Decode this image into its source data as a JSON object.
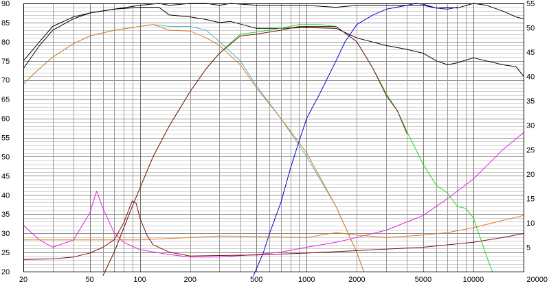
{
  "chart_data": {
    "type": "line",
    "xscale": "log",
    "xlim": [
      20,
      20000
    ],
    "ylim_left": [
      20,
      90
    ],
    "ylim_right": [
      0,
      55
    ],
    "x_ticks": [
      {
        "v": 20,
        "label": "20"
      },
      {
        "v": 50,
        "label": "50"
      },
      {
        "v": 100,
        "label": "100"
      },
      {
        "v": 200,
        "label": "200"
      },
      {
        "v": 500,
        "label": "500"
      },
      {
        "v": 1000,
        "label": "1000"
      },
      {
        "v": 2000,
        "label": "2000"
      },
      {
        "v": 5000,
        "label": "5000"
      },
      {
        "v": 10000,
        "label": "10000"
      },
      {
        "v": 20000,
        "label": "20000"
      }
    ],
    "y_left_ticks": [
      {
        "v": 20,
        "label": "20"
      },
      {
        "v": 25,
        "label": "25"
      },
      {
        "v": 30,
        "label": "30"
      },
      {
        "v": 35,
        "label": "35"
      },
      {
        "v": 40,
        "label": "40"
      },
      {
        "v": 45,
        "label": "45"
      },
      {
        "v": 50,
        "label": "50"
      },
      {
        "v": 55,
        "label": "55"
      },
      {
        "v": 60,
        "label": "60"
      },
      {
        "v": 65,
        "label": "65"
      },
      {
        "v": 70,
        "label": "70"
      },
      {
        "v": 75,
        "label": "75"
      },
      {
        "v": 80,
        "label": "80"
      },
      {
        "v": 85,
        "label": "85"
      },
      {
        "v": 90,
        "label": "90"
      }
    ],
    "y_right_ticks": [
      {
        "v": 5,
        "label": "5"
      },
      {
        "v": 10,
        "label": "10"
      },
      {
        "v": 15,
        "label": "15"
      },
      {
        "v": 20,
        "label": "20"
      },
      {
        "v": 25,
        "label": "25"
      },
      {
        "v": 30,
        "label": "30"
      },
      {
        "v": 35,
        "label": "35"
      },
      {
        "v": 40,
        "label": "40"
      },
      {
        "v": 45,
        "label": "45"
      },
      {
        "v": 50,
        "label": "50"
      },
      {
        "v": 55,
        "label": "55"
      }
    ],
    "grid": true,
    "series": [
      {
        "id": "black_top",
        "color": "#000000",
        "axis": "left",
        "points": [
          [
            20,
            75
          ],
          [
            25,
            80
          ],
          [
            30,
            84
          ],
          [
            40,
            86.5
          ],
          [
            50,
            87.5
          ],
          [
            70,
            88.5
          ],
          [
            100,
            89.5
          ],
          [
            130,
            90.5
          ],
          [
            150,
            89.5
          ],
          [
            200,
            90
          ],
          [
            250,
            90
          ],
          [
            300,
            89.5
          ],
          [
            350,
            90.5
          ],
          [
            500,
            89.5
          ],
          [
            700,
            89.5
          ],
          [
            1000,
            89.5
          ],
          [
            1500,
            89
          ],
          [
            2000,
            89.5
          ],
          [
            3000,
            89.5
          ],
          [
            4000,
            89.5
          ],
          [
            5000,
            89.5
          ],
          [
            6000,
            88.8
          ],
          [
            7000,
            89
          ],
          [
            8000,
            88.8
          ],
          [
            10000,
            90
          ],
          [
            12000,
            89.5
          ],
          [
            15000,
            88
          ],
          [
            18000,
            86.5
          ],
          [
            20000,
            86
          ]
        ]
      },
      {
        "id": "black_lower",
        "color": "#000000",
        "axis": "left",
        "points": [
          [
            20,
            73
          ],
          [
            25,
            79
          ],
          [
            30,
            83
          ],
          [
            40,
            86
          ],
          [
            50,
            87.5
          ],
          [
            70,
            88.5
          ],
          [
            100,
            89
          ],
          [
            130,
            89
          ],
          [
            150,
            87
          ],
          [
            200,
            86.5
          ],
          [
            250,
            85.8
          ],
          [
            300,
            85
          ],
          [
            350,
            85.3
          ],
          [
            500,
            83.5
          ],
          [
            700,
            83.5
          ],
          [
            1000,
            83.7
          ],
          [
            1500,
            83.5
          ],
          [
            2000,
            81
          ],
          [
            3000,
            79
          ],
          [
            4000,
            78
          ],
          [
            5000,
            77
          ],
          [
            6000,
            75
          ],
          [
            7000,
            74
          ],
          [
            8000,
            74.5
          ],
          [
            10000,
            75.8
          ],
          [
            12000,
            75
          ],
          [
            15000,
            74
          ],
          [
            18000,
            73.5
          ],
          [
            20000,
            71
          ]
        ]
      },
      {
        "id": "cyan",
        "color": "#3fbccc",
        "axis": "left",
        "points": [
          [
            20,
            69
          ],
          [
            25,
            73
          ],
          [
            30,
            76
          ],
          [
            40,
            79.5
          ],
          [
            50,
            81.5
          ],
          [
            70,
            83
          ],
          [
            100,
            84
          ],
          [
            120,
            84.5
          ],
          [
            150,
            84
          ],
          [
            200,
            84
          ],
          [
            250,
            83
          ],
          [
            300,
            80
          ],
          [
            400,
            75
          ],
          [
            500,
            68.5
          ],
          [
            700,
            60
          ],
          [
            1000,
            50
          ],
          [
            1500,
            37
          ],
          [
            2000,
            25
          ],
          [
            2200,
            20
          ]
        ]
      },
      {
        "id": "orange",
        "color": "#e07a20",
        "axis": "left",
        "points": [
          [
            20,
            69
          ],
          [
            25,
            73
          ],
          [
            30,
            76
          ],
          [
            40,
            79.5
          ],
          [
            50,
            81.5
          ],
          [
            70,
            83
          ],
          [
            100,
            84
          ],
          [
            120,
            84.5
          ],
          [
            150,
            83
          ],
          [
            200,
            82.8
          ],
          [
            250,
            81
          ],
          [
            300,
            79
          ],
          [
            400,
            74
          ],
          [
            500,
            68
          ],
          [
            700,
            60
          ],
          [
            1000,
            51
          ],
          [
            1500,
            37
          ],
          [
            2000,
            25
          ],
          [
            2200,
            20
          ]
        ]
      },
      {
        "id": "green",
        "color": "#22d822",
        "axis": "left",
        "points": [
          [
            60,
            18
          ],
          [
            70,
            25
          ],
          [
            90,
            37
          ],
          [
            120,
            50
          ],
          [
            150,
            58
          ],
          [
            200,
            67
          ],
          [
            250,
            73
          ],
          [
            300,
            77
          ],
          [
            400,
            82
          ],
          [
            500,
            82.5
          ],
          [
            700,
            83.5
          ],
          [
            900,
            84.5
          ],
          [
            1200,
            84.5
          ],
          [
            1500,
            84
          ],
          [
            2000,
            80
          ],
          [
            2500,
            73
          ],
          [
            3000,
            66.5
          ],
          [
            3500,
            62
          ],
          [
            4000,
            56.5
          ],
          [
            5000,
            48
          ],
          [
            6000,
            42.5
          ],
          [
            7000,
            40.5
          ],
          [
            8000,
            37
          ],
          [
            9000,
            36.5
          ],
          [
            10000,
            34
          ],
          [
            12000,
            24
          ],
          [
            13000,
            20
          ]
        ]
      },
      {
        "id": "darkred",
        "color": "#7a1010",
        "axis": "left",
        "points": [
          [
            60,
            18
          ],
          [
            70,
            25
          ],
          [
            90,
            37
          ],
          [
            120,
            50
          ],
          [
            150,
            58
          ],
          [
            200,
            67
          ],
          [
            250,
            73
          ],
          [
            300,
            77
          ],
          [
            400,
            81.5
          ],
          [
            500,
            82
          ],
          [
            700,
            83
          ],
          [
            900,
            84
          ],
          [
            1200,
            84
          ],
          [
            1500,
            84
          ],
          [
            2000,
            80
          ],
          [
            2500,
            73
          ],
          [
            3000,
            66
          ],
          [
            3500,
            62
          ],
          [
            4000,
            56
          ]
        ]
      },
      {
        "id": "blue",
        "color": "#0000cc",
        "axis": "left",
        "points": [
          [
            480,
            18
          ],
          [
            550,
            25
          ],
          [
            600,
            30
          ],
          [
            700,
            38
          ],
          [
            800,
            47
          ],
          [
            900,
            54
          ],
          [
            1000,
            60
          ],
          [
            1200,
            66.5
          ],
          [
            1500,
            75
          ],
          [
            1700,
            80
          ],
          [
            2000,
            84.5
          ],
          [
            2500,
            87
          ],
          [
            3000,
            88.5
          ],
          [
            4000,
            89.5
          ],
          [
            4500,
            90
          ],
          [
            5000,
            89.8
          ],
          [
            6000,
            88.8
          ],
          [
            7000,
            88.5
          ],
          [
            8000,
            89
          ]
        ]
      },
      {
        "id": "magenta",
        "color": "#e020e0",
        "axis": "right",
        "points": [
          [
            20,
            9.5
          ],
          [
            25,
            6.5
          ],
          [
            30,
            5
          ],
          [
            40,
            6.5
          ],
          [
            50,
            12
          ],
          [
            55,
            16.5
          ],
          [
            60,
            13
          ],
          [
            70,
            8
          ],
          [
            80,
            6
          ],
          [
            100,
            4.5
          ],
          [
            150,
            3.5
          ],
          [
            200,
            3
          ],
          [
            300,
            3
          ],
          [
            500,
            3.5
          ],
          [
            700,
            4
          ],
          [
            1000,
            5
          ],
          [
            1500,
            6
          ],
          [
            2000,
            7
          ],
          [
            3000,
            8.5
          ],
          [
            5000,
            11.5
          ],
          [
            7000,
            15
          ],
          [
            10000,
            19
          ],
          [
            15000,
            25
          ],
          [
            20000,
            28.5
          ]
        ]
      },
      {
        "id": "orange_low",
        "color": "#e07a20",
        "axis": "right",
        "points": [
          [
            20,
            6.5
          ],
          [
            50,
            6.5
          ],
          [
            100,
            6.5
          ],
          [
            200,
            7
          ],
          [
            300,
            7.3
          ],
          [
            500,
            7.2
          ],
          [
            700,
            7.1
          ],
          [
            1000,
            7
          ],
          [
            1500,
            8
          ],
          [
            2000,
            7.5
          ],
          [
            3000,
            7
          ],
          [
            5000,
            7.5
          ],
          [
            7000,
            8
          ],
          [
            10000,
            9
          ],
          [
            15000,
            10.5
          ],
          [
            20000,
            11.5
          ]
        ]
      },
      {
        "id": "darkred_low",
        "color": "#7a1010",
        "axis": "right",
        "points": [
          [
            20,
            2.5
          ],
          [
            30,
            2.6
          ],
          [
            40,
            3
          ],
          [
            50,
            3.8
          ],
          [
            60,
            5
          ],
          [
            70,
            6.5
          ],
          [
            80,
            10
          ],
          [
            90,
            14.5
          ],
          [
            95,
            14
          ],
          [
            100,
            11
          ],
          [
            110,
            7.5
          ],
          [
            120,
            5.5
          ],
          [
            150,
            4
          ],
          [
            200,
            3.2
          ],
          [
            300,
            3.3
          ],
          [
            500,
            3.4
          ],
          [
            1000,
            3.8
          ],
          [
            2000,
            4.3
          ],
          [
            5000,
            5
          ],
          [
            10000,
            6
          ],
          [
            15000,
            7
          ],
          [
            20000,
            7.8
          ]
        ]
      }
    ]
  }
}
